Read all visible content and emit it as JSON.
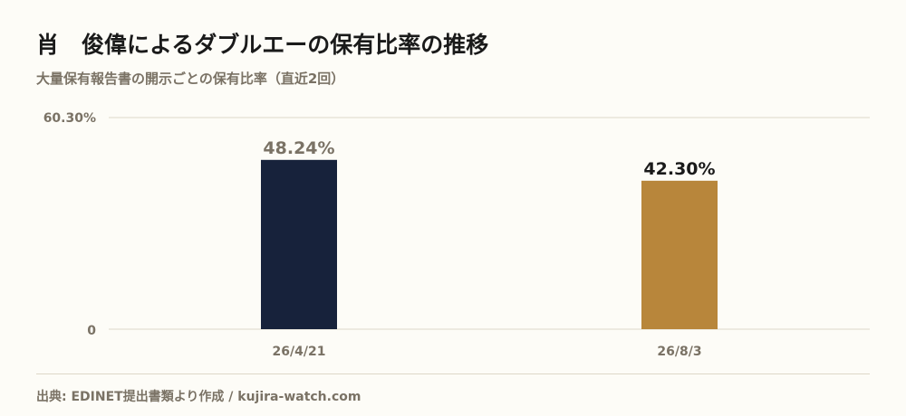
{
  "header": {
    "title": "肖　俊偉によるダブルエーの保有比率の推移",
    "subtitle": "大量保有報告書の開示ごとの保有比率（直近2回）"
  },
  "chart_data": {
    "type": "bar",
    "categories": [
      "26/4/21",
      "26/8/3"
    ],
    "values": [
      48.24,
      42.3
    ],
    "value_labels": [
      "48.24%",
      "42.30%"
    ],
    "bar_colors": [
      "#17223b",
      "#b8863b"
    ],
    "value_label_colors": [
      "#7a7265",
      "#1a1a1a"
    ],
    "ylim": [
      0,
      60.3
    ],
    "ytick_labels": [
      "0",
      "60.30%"
    ],
    "grid": true,
    "legend": "none"
  },
  "footer": {
    "source": "出典: EDINET提出書類より作成 / kujira-watch.com"
  },
  "colors": {
    "background": "#fdfcf7",
    "gridline": "#ddd8c8",
    "muted_text": "#7a7265"
  }
}
